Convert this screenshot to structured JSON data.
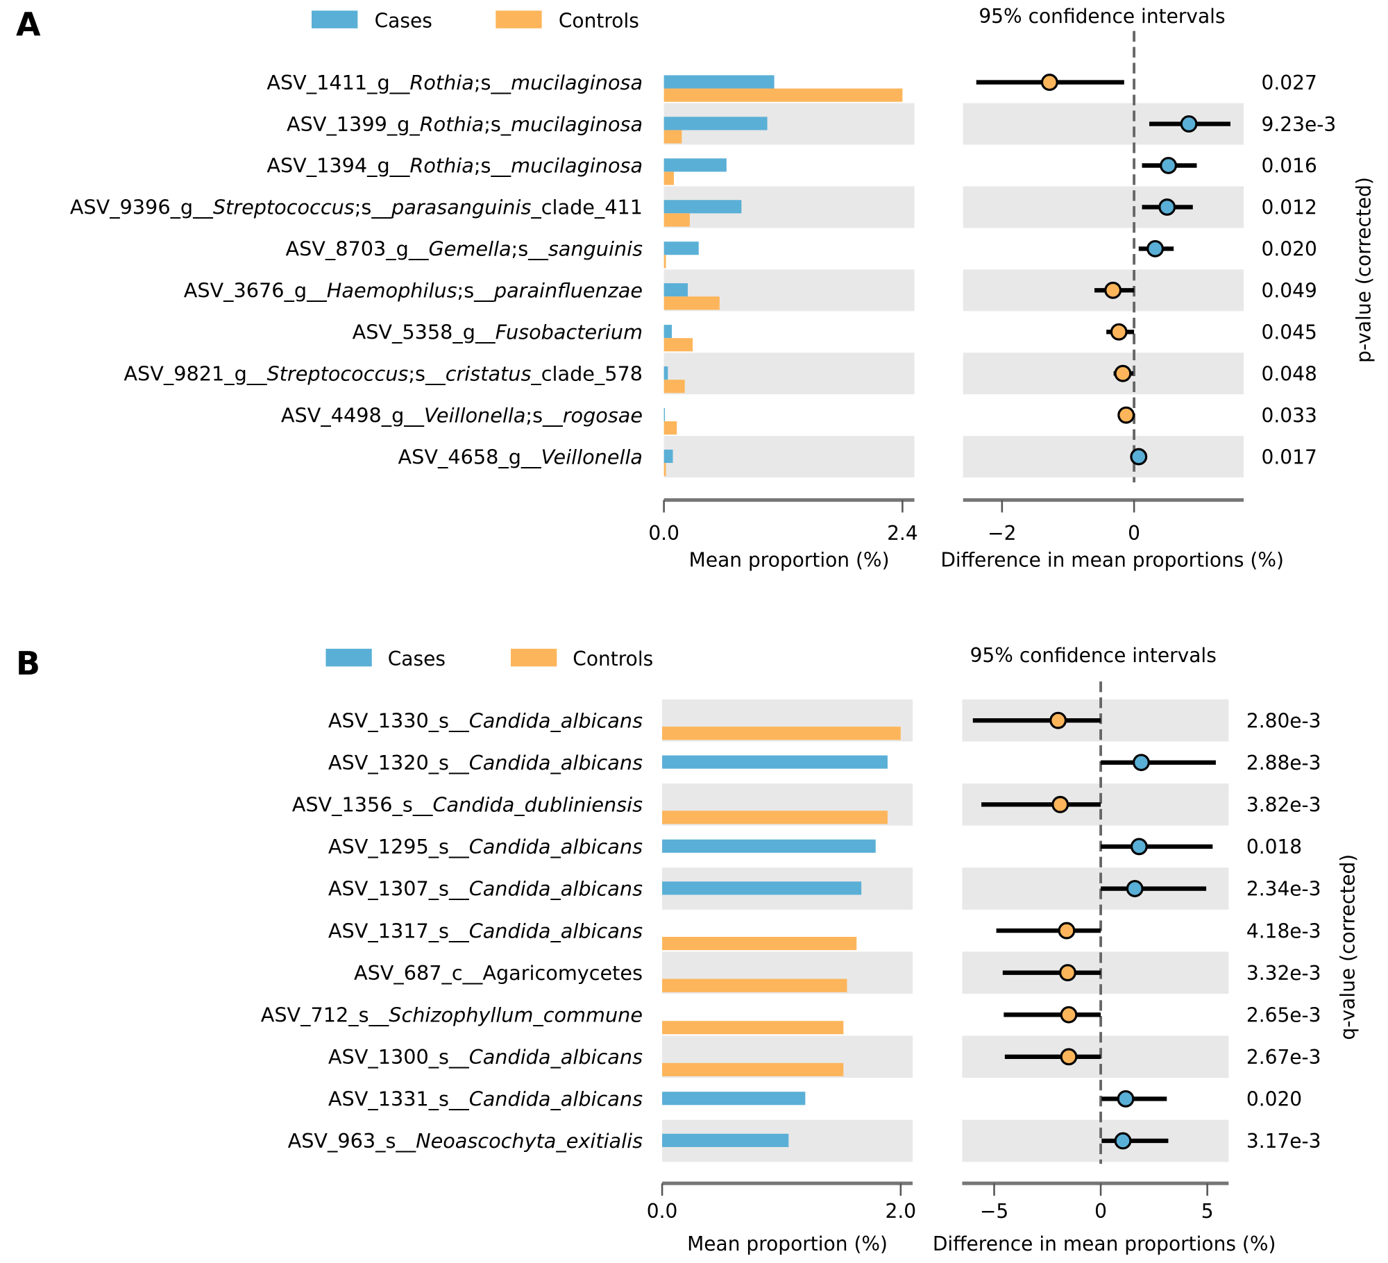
{
  "colors": {
    "cases": "#5aafd6",
    "controls": "#fdb55b",
    "band": "#e8e8e8",
    "axis": "#777777"
  },
  "chart_data": [
    {
      "type": "extended-error-bar",
      "panel_label": "A",
      "legend": {
        "cases": "Cases",
        "controls": "Controls",
        "placement": "top"
      },
      "ci_title": "95% confidence intervals",
      "bar_xlabel": "Mean proportion (%)",
      "ci_xlabel": "Difference in mean proportions (%)",
      "pvalue_label": "p-value (corrected)",
      "bar_xlim": [
        0,
        2.52
      ],
      "bar_ticks": [
        "0.0",
        "2.4"
      ],
      "bar_tick_values": [
        0,
        2.4
      ],
      "ci_xlim": [
        -2.59,
        1.66
      ],
      "ci_ticks": [
        "−2",
        "0"
      ],
      "ci_tick_values": [
        -2,
        0
      ],
      "rows": [
        {
          "label": [
            [
              "ASV_1411_g__",
              0
            ],
            [
              "Rothia",
              1
            ],
            [
              ";s__",
              0
            ],
            [
              "mucilaginosa",
              1
            ]
          ],
          "cases": 1.11,
          "controls": 2.4,
          "diff": -1.28,
          "ci": [
            -2.39,
            -0.15
          ],
          "p": "0.027"
        },
        {
          "label": [
            [
              "ASV_1399_g_",
              0
            ],
            [
              "Rothia",
              1
            ],
            [
              ";s_",
              0
            ],
            [
              "mucilaginosa",
              1
            ]
          ],
          "cases": 1.04,
          "controls": 0.18,
          "diff": 0.83,
          "ci": [
            0.23,
            1.46
          ],
          "p": "9.23e-3"
        },
        {
          "label": [
            [
              "ASV_1394_g__",
              0
            ],
            [
              "Rothia",
              1
            ],
            [
              ";s__",
              0
            ],
            [
              "mucilaginosa",
              1
            ]
          ],
          "cases": 0.63,
          "controls": 0.1,
          "diff": 0.52,
          "ci": [
            0.12,
            0.95
          ],
          "p": "0.016"
        },
        {
          "label": [
            [
              "ASV_9396_g__",
              0
            ],
            [
              "Streptococcus",
              1
            ],
            [
              ";s__",
              0
            ],
            [
              "parasanguinis",
              1
            ],
            [
              "_clade_411",
              0
            ]
          ],
          "cases": 0.78,
          "controls": 0.26,
          "diff": 0.5,
          "ci": [
            0.12,
            0.89
          ],
          "p": "0.012"
        },
        {
          "label": [
            [
              "ASV_8703_g__",
              0
            ],
            [
              "Gemella",
              1
            ],
            [
              ";s__",
              0
            ],
            [
              "sanguinis",
              1
            ]
          ],
          "cases": 0.35,
          "controls": 0.02,
          "diff": 0.32,
          "ci": [
            0.07,
            0.6
          ],
          "p": "0.020"
        },
        {
          "label": [
            [
              "ASV_3676_g__",
              0
            ],
            [
              "Haemophilus",
              1
            ],
            [
              ";s__",
              0
            ],
            [
              "parainfluenzae",
              1
            ]
          ],
          "cases": 0.24,
          "controls": 0.56,
          "diff": -0.32,
          "ci": [
            -0.6,
            0.0
          ],
          "p": "0.049"
        },
        {
          "label": [
            [
              "ASV_5358_g__",
              0
            ],
            [
              "Fusobacterium",
              1
            ]
          ],
          "cases": 0.08,
          "controls": 0.29,
          "diff": -0.23,
          "ci": [
            -0.42,
            0.0
          ],
          "p": "0.045"
        },
        {
          "label": [
            [
              "ASV_9821_g__",
              0
            ],
            [
              "Streptococcus",
              1
            ],
            [
              ";s__",
              0
            ],
            [
              "cristatus",
              1
            ],
            [
              "_clade_578",
              0
            ]
          ],
          "cases": 0.04,
          "controls": 0.21,
          "diff": -0.17,
          "ci": [
            -0.31,
            -0.01
          ],
          "p": "0.048"
        },
        {
          "label": [
            [
              "ASV_4498_g__",
              0
            ],
            [
              "Veillonella",
              1
            ],
            [
              ";s__",
              0
            ],
            [
              "rogosae",
              1
            ]
          ],
          "cases": 0.01,
          "controls": 0.13,
          "diff": -0.12,
          "ci": [
            -0.21,
            -0.01
          ],
          "p": "0.033"
        },
        {
          "label": [
            [
              "ASV_4658_g__",
              0
            ],
            [
              "Veillonella",
              1
            ]
          ],
          "cases": 0.09,
          "controls": 0.02,
          "diff": 0.07,
          "ci": [
            -0.03,
            0.17
          ],
          "p": "0.017"
        }
      ]
    },
    {
      "type": "extended-error-bar",
      "panel_label": "B",
      "legend": {
        "cases": "Cases",
        "controls": "Controls",
        "placement": "top"
      },
      "ci_title": "95% confidence intervals",
      "bar_xlabel": "Mean proportion (%)",
      "ci_xlabel": "Difference in mean proportions (%)",
      "pvalue_label": "q-value (corrected)",
      "bar_xlim": [
        0,
        2.1
      ],
      "bar_ticks": [
        "0.0",
        "2.0"
      ],
      "bar_tick_values": [
        0,
        2.0
      ],
      "ci_xlim": [
        -6.5,
        6.0
      ],
      "ci_ticks": [
        "−5",
        "0",
        "5"
      ],
      "ci_tick_values": [
        -5,
        0,
        5
      ],
      "rows": [
        {
          "label": [
            [
              "ASV_1330_s__",
              0
            ],
            [
              "Candida_albicans",
              1
            ]
          ],
          "cases": 0.0,
          "controls": 2.0,
          "diff": -2.0,
          "ci": [
            -6.0,
            0.0
          ],
          "p": "2.80e-3"
        },
        {
          "label": [
            [
              "ASV_1320_s__",
              0
            ],
            [
              "Candida_albicans",
              1
            ]
          ],
          "cases": 1.89,
          "controls": 0.0,
          "diff": 1.9,
          "ci": [
            0.0,
            5.4
          ],
          "p": "2.88e-3"
        },
        {
          "label": [
            [
              "ASV_1356_s__",
              0
            ],
            [
              "Candida_dubliniensis",
              1
            ]
          ],
          "cases": 0.0,
          "controls": 1.89,
          "diff": -1.9,
          "ci": [
            -5.6,
            0.0
          ],
          "p": "3.82e-3"
        },
        {
          "label": [
            [
              "ASV_1295_s__",
              0
            ],
            [
              "Candida_albicans",
              1
            ]
          ],
          "cases": 1.79,
          "controls": 0.0,
          "diff": 1.8,
          "ci": [
            0.0,
            5.25
          ],
          "p": "0.018"
        },
        {
          "label": [
            [
              "ASV_1307_s__",
              0
            ],
            [
              "Candida_albicans",
              1
            ]
          ],
          "cases": 1.67,
          "controls": 0.0,
          "diff": 1.6,
          "ci": [
            0.0,
            4.95
          ],
          "p": "2.34e-3"
        },
        {
          "label": [
            [
              "ASV_1317_s__",
              0
            ],
            [
              "Candida_albicans",
              1
            ]
          ],
          "cases": 0.0,
          "controls": 1.63,
          "diff": -1.6,
          "ci": [
            -4.9,
            0.0
          ],
          "p": "4.18e-3"
        },
        {
          "label": [
            [
              "ASV_687_c__Agaricomycetes",
              0
            ]
          ],
          "cases": 0.0,
          "controls": 1.55,
          "diff": -1.55,
          "ci": [
            -4.6,
            0.0
          ],
          "p": "3.32e-3"
        },
        {
          "label": [
            [
              "ASV_712_s__",
              0
            ],
            [
              "Schizophyllum_commune",
              1
            ]
          ],
          "cases": 0.0,
          "controls": 1.52,
          "diff": -1.5,
          "ci": [
            -4.55,
            0.0
          ],
          "p": "2.65e-3"
        },
        {
          "label": [
            [
              "ASV_1300_s__",
              0
            ],
            [
              "Candida_albicans",
              1
            ]
          ],
          "cases": 0.0,
          "controls": 1.52,
          "diff": -1.5,
          "ci": [
            -4.5,
            0.0
          ],
          "p": "2.67e-3"
        },
        {
          "label": [
            [
              "ASV_1331_s__",
              0
            ],
            [
              "Candida_albicans",
              1
            ]
          ],
          "cases": 1.2,
          "controls": 0.0,
          "diff": 1.17,
          "ci": [
            0.04,
            3.1
          ],
          "p": "0.020"
        },
        {
          "label": [
            [
              "ASV_963_s__",
              0
            ],
            [
              "Neoascochyta_exitialis",
              1
            ]
          ],
          "cases": 1.06,
          "controls": 0.0,
          "diff": 1.04,
          "ci": [
            0.04,
            3.17
          ],
          "p": "3.17e-3"
        }
      ]
    }
  ]
}
